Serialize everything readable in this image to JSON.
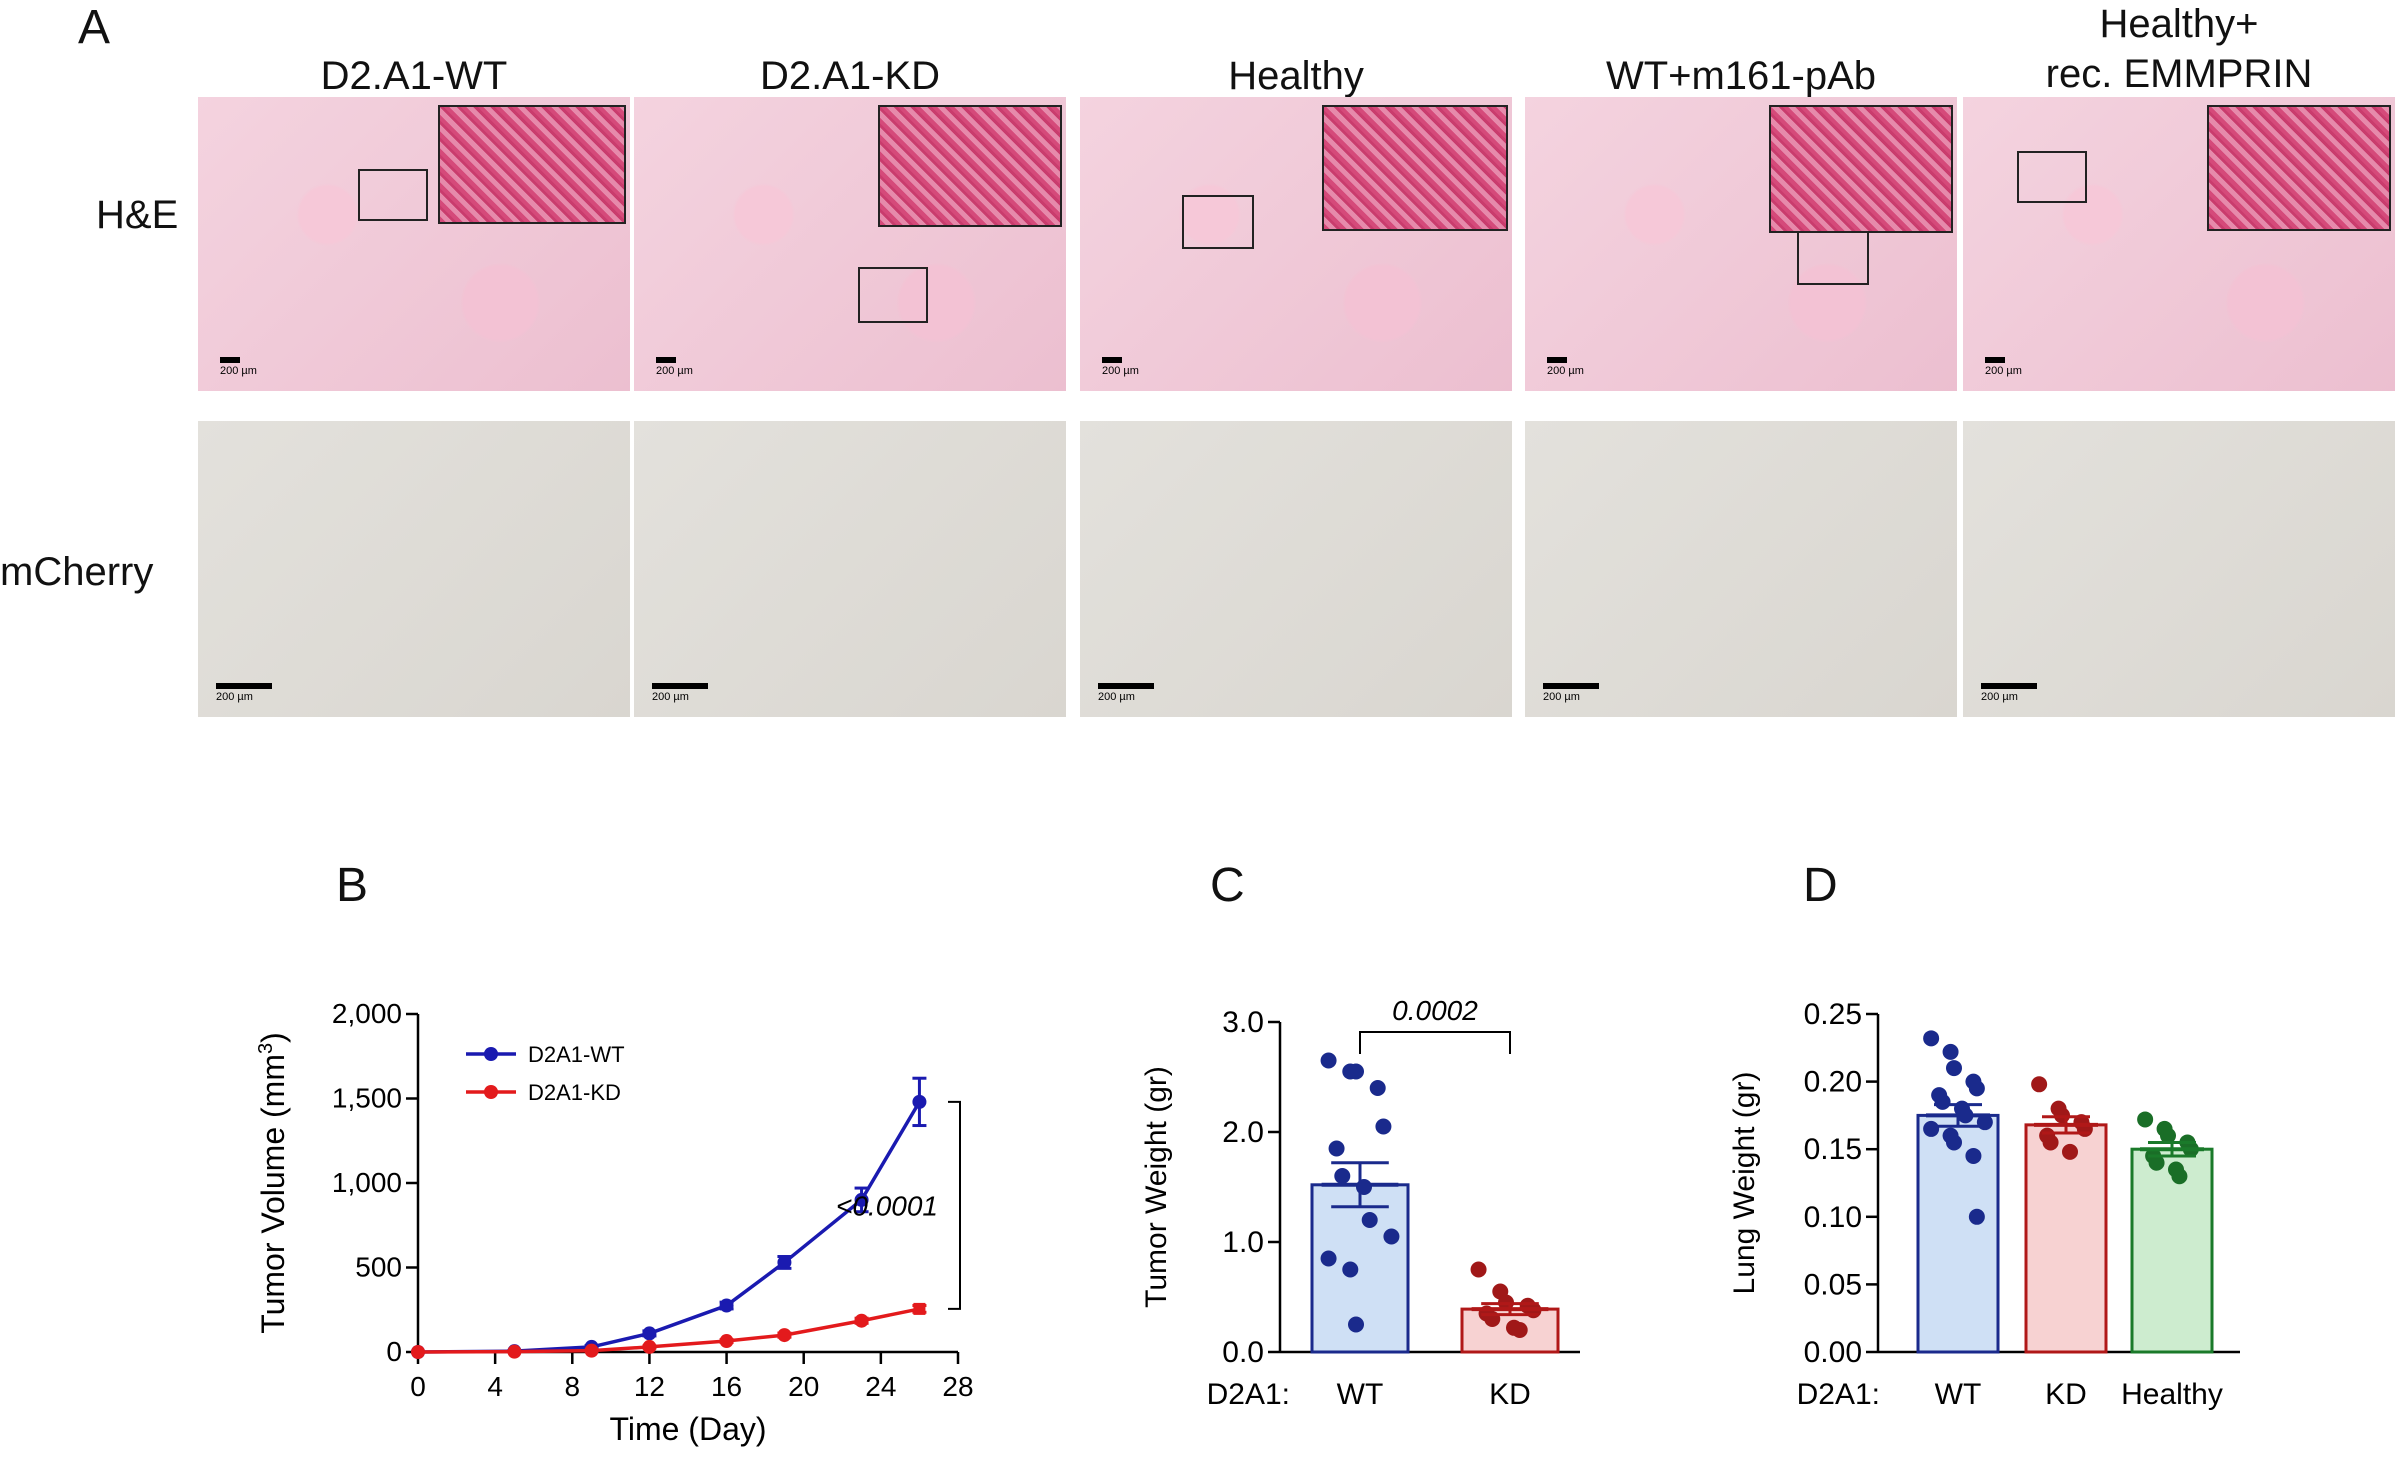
{
  "panel_a": {
    "letter": "A",
    "columns": [
      {
        "title_lines": [
          "D2.A1-WT"
        ]
      },
      {
        "title_lines": [
          "D2.A1-KD"
        ]
      },
      {
        "title_lines": [
          "Healthy"
        ]
      },
      {
        "title_lines": [
          "WT+m161-pAb"
        ]
      },
      {
        "title_lines": [
          "Healthy+",
          "rec. EMMPRIN"
        ]
      }
    ],
    "row_labels": [
      "H&E",
      "mCherry"
    ],
    "scale_bar_text": "200 µm",
    "colors": {
      "he_tissue": "#f0c6d6",
      "he_inset": "#d9517f",
      "ihc_tissue": "#dedbd6"
    }
  },
  "panel_b": {
    "letter": "B",
    "chart_data": {
      "type": "line",
      "xlabel": "Time (Day)",
      "ylabel_main": "Tumor Volume (mm",
      "ylabel_sup": "3",
      "ylabel_close": ")",
      "xlim": [
        0,
        28
      ],
      "ylim": [
        0,
        2000
      ],
      "xticks": [
        0,
        4,
        8,
        12,
        16,
        20,
        24,
        28
      ],
      "yticks": [
        0,
        500,
        1000,
        1500,
        2000
      ],
      "ytick_labels": [
        "0",
        "500",
        "1,000",
        "1,500",
        "2,000"
      ],
      "series": [
        {
          "name": "D2A1-WT",
          "color": "#1a1ab0",
          "x": [
            0,
            5,
            9,
            12,
            16,
            19,
            23,
            26
          ],
          "y": [
            0,
            5,
            30,
            110,
            275,
            530,
            900,
            1480
          ],
          "err": [
            0,
            3,
            8,
            15,
            20,
            35,
            70,
            140
          ]
        },
        {
          "name": "D2A1-KD",
          "color": "#e31a1c",
          "x": [
            0,
            5,
            9,
            12,
            16,
            19,
            23,
            26
          ],
          "y": [
            0,
            2,
            8,
            30,
            65,
            100,
            185,
            255
          ],
          "err": [
            0,
            1,
            3,
            6,
            8,
            12,
            15,
            20
          ]
        }
      ],
      "annotation": "<0.0001",
      "legend_position": "top-left"
    }
  },
  "panel_c": {
    "letter": "C",
    "chart_data": {
      "type": "bar",
      "xlabel_prefix": "D2A1:",
      "ylabel": "Tumor Weight (gr)",
      "categories": [
        "WT",
        "KD"
      ],
      "values": [
        1.52,
        0.39
      ],
      "errors": [
        0.2,
        0.05
      ],
      "ylim": [
        0,
        3.0
      ],
      "yticks": [
        0.0,
        1.0,
        2.0,
        3.0
      ],
      "ytick_labels": [
        "0.0",
        "1.0",
        "2.0",
        "3.0"
      ],
      "fill_colors": [
        "#cfe0f5",
        "#f7d2d2"
      ],
      "edge_colors": [
        "#1a2a8c",
        "#b01818"
      ],
      "dot_colors": [
        "#1a2a8c",
        "#a01818"
      ],
      "points": [
        [
          2.65,
          2.55,
          2.55,
          2.4,
          2.05,
          1.85,
          1.6,
          1.5,
          1.2,
          1.05,
          0.85,
          0.75,
          0.25
        ],
        [
          0.75,
          0.55,
          0.45,
          0.42,
          0.38,
          0.35,
          0.3,
          0.22,
          0.2
        ]
      ],
      "significance": "0.0002"
    }
  },
  "panel_d": {
    "letter": "D",
    "chart_data": {
      "type": "bar",
      "xlabel_prefix": "D2A1:",
      "ylabel": "Lung Weight (gr)",
      "categories": [
        "WT",
        "KD",
        "Healthy"
      ],
      "values": [
        0.175,
        0.168,
        0.15
      ],
      "errors": [
        0.008,
        0.006,
        0.005
      ],
      "ylim": [
        0,
        0.25
      ],
      "yticks": [
        0.0,
        0.05,
        0.1,
        0.15,
        0.2,
        0.25
      ],
      "ytick_labels": [
        "0.00",
        "0.05",
        "0.10",
        "0.15",
        "0.20",
        "0.25"
      ],
      "fill_colors": [
        "#cfe0f5",
        "#f7d2d2",
        "#cdeccf"
      ],
      "edge_colors": [
        "#1a2a8c",
        "#b01818",
        "#1a7a2a"
      ],
      "dot_colors": [
        "#1a2a8c",
        "#a01818",
        "#1a6e27"
      ],
      "points": [
        [
          0.232,
          0.222,
          0.21,
          0.2,
          0.195,
          0.19,
          0.185,
          0.18,
          0.175,
          0.17,
          0.165,
          0.16,
          0.155,
          0.145,
          0.1
        ],
        [
          0.198,
          0.18,
          0.175,
          0.17,
          0.165,
          0.16,
          0.155,
          0.148
        ],
        [
          0.172,
          0.165,
          0.16,
          0.155,
          0.15,
          0.145,
          0.14,
          0.135,
          0.13
        ]
      ]
    }
  }
}
